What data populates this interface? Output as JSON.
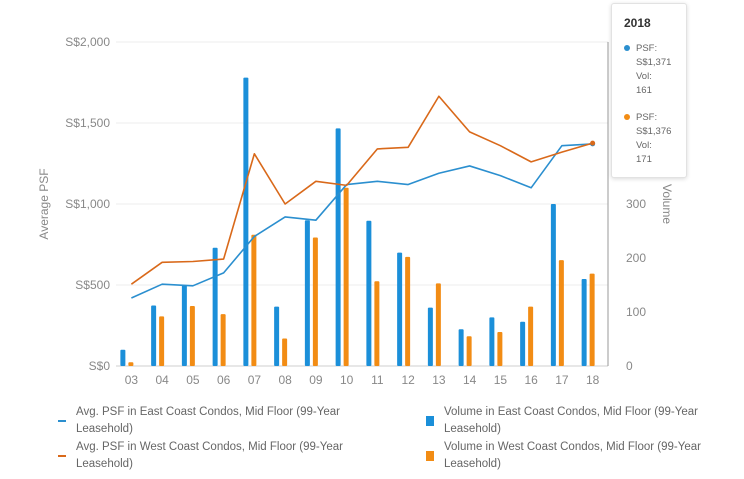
{
  "chart_data": {
    "type": "bar+line",
    "title": "",
    "categories": [
      "03",
      "04",
      "05",
      "06",
      "07",
      "08",
      "09",
      "10",
      "11",
      "12",
      "13",
      "14",
      "15",
      "16",
      "17",
      "18"
    ],
    "y_left": {
      "label": "Average PSF",
      "ticks": [
        "S$0",
        "S$500",
        "S$1,000",
        "S$1,500",
        "S$2,000"
      ],
      "tick_values": [
        0,
        500,
        1000,
        1500,
        2000
      ],
      "range": [
        0,
        2000
      ]
    },
    "y_right": {
      "label": "Volume",
      "ticks": [
        "0",
        "100",
        "200",
        "300"
      ],
      "tick_values": [
        0,
        100,
        200,
        300
      ],
      "range": [
        0,
        600
      ]
    },
    "series": [
      {
        "name": "Avg. PSF in East Coast Condos, Mid Floor (99-Year Leasehold)",
        "kind": "line",
        "axis": "left",
        "color": "#2b8fcf",
        "values": [
          420,
          505,
          495,
          575,
          800,
          920,
          900,
          1120,
          1140,
          1120,
          1190,
          1235,
          1175,
          1100,
          1360,
          1371
        ]
      },
      {
        "name": "Avg. PSF in West Coast Condos, Mid Floor (99-Year Leasehold)",
        "kind": "line",
        "axis": "left",
        "color": "#d9691a",
        "values": [
          505,
          640,
          645,
          660,
          1310,
          1000,
          1140,
          1115,
          1340,
          1350,
          1665,
          1445,
          1360,
          1260,
          1320,
          1376
        ]
      },
      {
        "name": "Volume in East Coast Condos, Mid Floor (99-Year Leasehold)",
        "kind": "bar",
        "axis": "right",
        "color": "#1b8fd9",
        "values": [
          30,
          112,
          150,
          219,
          534,
          110,
          270,
          440,
          269,
          210,
          108,
          68,
          90,
          82,
          300,
          161
        ]
      },
      {
        "name": "Volume in West Coast Condos, Mid Floor (99-Year Leasehold)",
        "kind": "bar",
        "axis": "right",
        "color": "#f28c14",
        "values": [
          7,
          92,
          111,
          96,
          243,
          51,
          238,
          330,
          157,
          202,
          153,
          55,
          63,
          110,
          196,
          171
        ]
      }
    ],
    "tooltip": {
      "year": "2018",
      "items": [
        {
          "lines": [
            "PSF:",
            "S$1,371",
            "Vol:",
            "161"
          ],
          "color": "#2b8fcf"
        },
        {
          "lines": [
            "PSF:",
            "S$1,376",
            "Vol:",
            "171"
          ],
          "color": "#f28c14"
        }
      ]
    },
    "legend": {
      "position": "bottom",
      "layout": "two-columns"
    },
    "grid": true
  }
}
